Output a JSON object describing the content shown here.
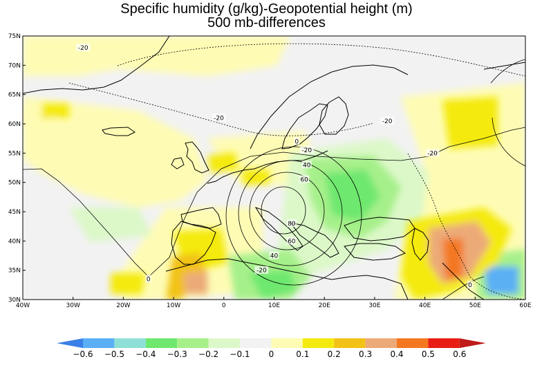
{
  "title": {
    "line1": "Specific humidity (g/kg)-Geopotential height (m)",
    "line2": "500 mb-differences"
  },
  "map": {
    "lon_range": [
      -40,
      60
    ],
    "lat_range": [
      30,
      75
    ],
    "lon_ticks": [
      "40W",
      "30W",
      "20W",
      "10W",
      "0",
      "10E",
      "20E",
      "30E",
      "40E",
      "50E",
      "60E"
    ],
    "lat_ticks": [
      "30N",
      "35N",
      "40N",
      "45N",
      "50N",
      "55N",
      "60N",
      "65N",
      "70N",
      "75N"
    ],
    "contour_labels": [
      {
        "text": "-20",
        "lon": -28,
        "lat": 73
      },
      {
        "text": "-20",
        "lon": -1,
        "lat": 61
      },
      {
        "text": "-20",
        "lon": 32.5,
        "lat": 60.5
      },
      {
        "text": "-20",
        "lon": 16.5,
        "lat": 55.5
      },
      {
        "text": "-20",
        "lon": 41.5,
        "lat": 55
      },
      {
        "text": "0",
        "lon": 14.5,
        "lat": 57
      },
      {
        "text": "40",
        "lon": 16.5,
        "lat": 53
      },
      {
        "text": "60",
        "lon": 16,
        "lat": 50.5
      },
      {
        "text": "80",
        "lon": 13.5,
        "lat": 43
      },
      {
        "text": "60",
        "lon": 13.5,
        "lat": 40
      },
      {
        "text": "40",
        "lon": 10,
        "lat": 37.5
      },
      {
        "text": "-20",
        "lon": 7.5,
        "lat": 35
      },
      {
        "text": "0",
        "lon": -15,
        "lat": 33.5
      },
      {
        "text": "0",
        "lon": 49,
        "lat": 32.5
      }
    ]
  },
  "colorbar": {
    "labels": [
      "-0.6",
      "-0.5",
      "-0.4",
      "-0.3",
      "-0.2",
      "-0.1",
      "0",
      "0.1",
      "0.2",
      "0.3",
      "0.4",
      "0.5",
      "0.6"
    ],
    "colors": [
      "#3a80e6",
      "#5aaff5",
      "#8ee0d6",
      "#6ee86e",
      "#a6f08a",
      "#dcf8c8",
      "#f2f2f2",
      "#fefcb4",
      "#f4ea10",
      "#f2c218",
      "#ecaa78",
      "#f47820",
      "#e81e14",
      "#c01a1a"
    ]
  }
}
